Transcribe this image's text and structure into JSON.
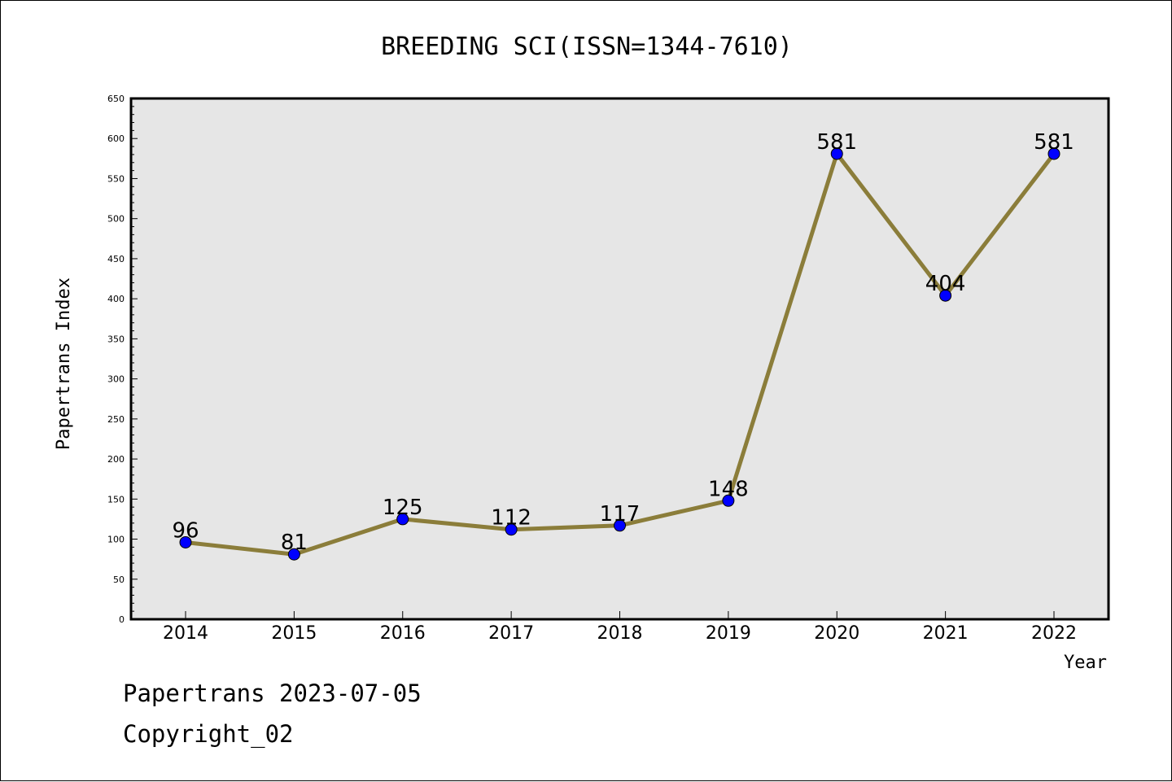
{
  "chart_data": {
    "type": "line",
    "title": "BREEDING SCI(ISSN=1344-7610)",
    "xlabel": "Year",
    "ylabel": "Papertrans Index",
    "categories": [
      "2014",
      "2015",
      "2016",
      "2017",
      "2018",
      "2019",
      "2020",
      "2021",
      "2022"
    ],
    "values": [
      96,
      81,
      125,
      112,
      117,
      148,
      581,
      404,
      581
    ],
    "data_labels": [
      "96",
      "81",
      "125",
      "112",
      "117",
      "148",
      "581",
      "404",
      "581"
    ],
    "ylim": [
      0,
      650
    ],
    "yticks": [
      "0",
      "50",
      "100",
      "150",
      "200",
      "250",
      "300",
      "350",
      "400",
      "450",
      "500",
      "550",
      "600",
      "650"
    ],
    "grid": false,
    "colors": {
      "line": "#8B7D3A",
      "marker": "#0000FF",
      "plot_bg": "#E6E6E6"
    }
  },
  "footer": {
    "line1": "Papertrans 2023-07-05",
    "line2": "Copyright_02"
  }
}
